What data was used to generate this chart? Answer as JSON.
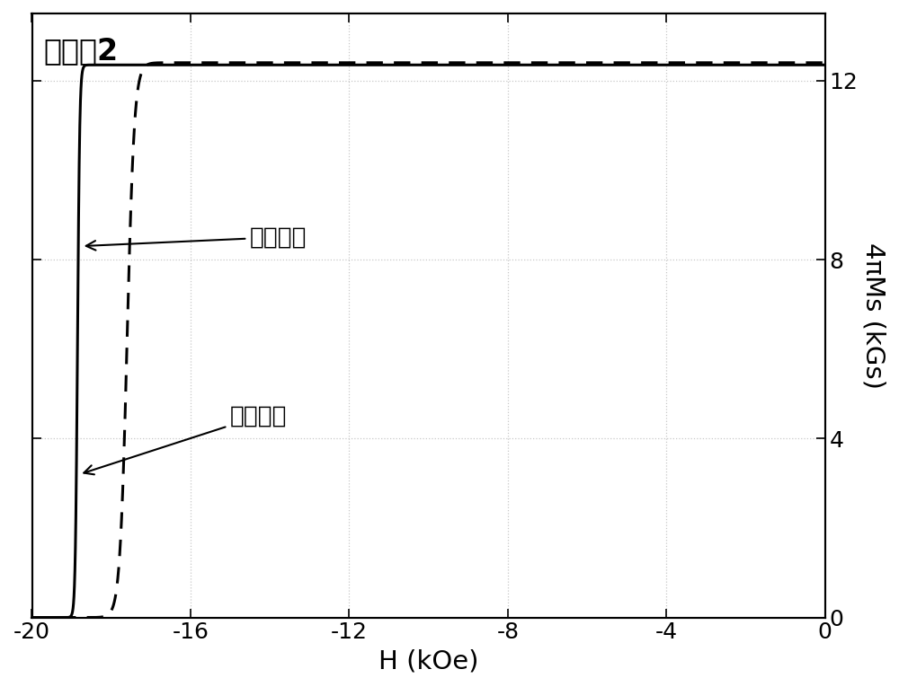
{
  "title": "实施例2",
  "xlabel": "H (kOe)",
  "ylabel": "4πMs (kGs)",
  "xlim": [
    -20,
    0
  ],
  "ylim": [
    0,
    13.5
  ],
  "ylim_display": [
    0,
    13
  ],
  "xticks": [
    -20,
    -16,
    -12,
    -8,
    -4,
    0
  ],
  "yticks": [
    0,
    4,
    8,
    12
  ],
  "bg_color": "#ffffff",
  "grid_color": "#c8c8c8",
  "label_before": "热处理前",
  "label_after": "热处理后",
  "line_color": "#000000",
  "annotation_fontsize": 19,
  "title_fontsize": 24,
  "axis_label_fontsize": 21,
  "tick_fontsize": 18,
  "solid_hc": -18.85,
  "solid_sharpness": 18.0,
  "solid_ms": 12.35,
  "dashed_hc": -17.6,
  "dashed_sharpness": 5.5,
  "dashed_ms": 12.4
}
